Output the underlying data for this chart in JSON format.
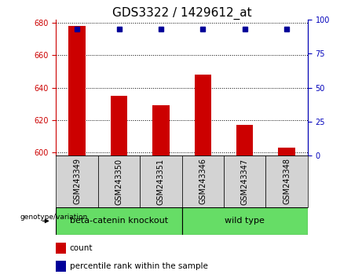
{
  "title": "GDS3322 / 1429612_at",
  "categories": [
    "GSM243349",
    "GSM243350",
    "GSM243351",
    "GSM243346",
    "GSM243347",
    "GSM243348"
  ],
  "bar_values": [
    678,
    635,
    629,
    648,
    617,
    603
  ],
  "percentile_values": [
    93,
    93,
    93,
    93,
    93,
    93
  ],
  "ylim_left": [
    598,
    682
  ],
  "ylim_right": [
    0,
    100
  ],
  "yticks_left": [
    600,
    620,
    640,
    660,
    680
  ],
  "yticks_right": [
    0,
    25,
    50,
    75,
    100
  ],
  "bar_color": "#cc0000",
  "percentile_color": "#000099",
  "grid_color": "#000000",
  "plot_bg": "#ffffff",
  "label_bg": "#d3d3d3",
  "group1_label": "beta-catenin knockout",
  "group2_label": "wild type",
  "group_color": "#66dd66",
  "legend_count_label": "count",
  "legend_percentile_label": "percentile rank within the sample",
  "genotype_label": "genotype/variation",
  "bar_bottom": 598,
  "bar_width": 0.4,
  "title_fontsize": 11,
  "tick_fontsize": 7,
  "label_fontsize": 8,
  "legend_fontsize": 7.5
}
